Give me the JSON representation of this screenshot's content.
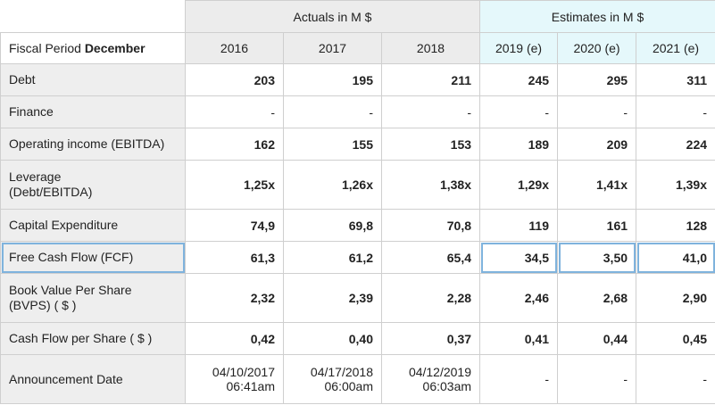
{
  "header": {
    "actuals_label": "Actuals in M $",
    "estimates_label": "Estimates in M $",
    "fiscal_period_prefix": "Fiscal Period ",
    "fiscal_period_month": "December",
    "years": [
      "2016",
      "2017",
      "2018",
      "2019 (e)",
      "2020 (e)",
      "2021 (e)"
    ]
  },
  "rows": [
    {
      "label_lines": [
        "Debt"
      ],
      "values": [
        "203",
        "195",
        "211",
        "245",
        "295",
        "311"
      ]
    },
    {
      "label_lines": [
        "Finance"
      ],
      "values": [
        "-",
        "-",
        "-",
        "-",
        "-",
        "-"
      ]
    },
    {
      "label_lines": [
        "Operating income (EBITDA)"
      ],
      "values": [
        "162",
        "155",
        "153",
        "189",
        "209",
        "224"
      ]
    },
    {
      "label_lines": [
        "Leverage",
        "(Debt/EBITDA)"
      ],
      "values": [
        "1,25x",
        "1,26x",
        "1,38x",
        "1,29x",
        "1,41x",
        "1,39x"
      ]
    },
    {
      "label_lines": [
        "Capital Expenditure"
      ],
      "values": [
        "74,9",
        "69,8",
        "70,8",
        "119",
        "161",
        "128"
      ]
    },
    {
      "label_lines": [
        "Free Cash Flow (FCF)"
      ],
      "values": [
        "61,3",
        "61,2",
        "65,4",
        "34,5",
        "3,50",
        "41,0"
      ]
    },
    {
      "label_lines": [
        "Book Value Per Share",
        "(BVPS) ( $ )"
      ],
      "values": [
        "2,32",
        "2,39",
        "2,28",
        "2,46",
        "2,68",
        "2,90"
      ]
    },
    {
      "label_lines": [
        "Cash Flow per Share ( $ )"
      ],
      "values": [
        "0,42",
        "0,40",
        "0,37",
        "0,41",
        "0,44",
        "0,45"
      ]
    },
    {
      "label_lines": [
        "Announcement Date"
      ],
      "dates": [
        [
          "04/10/2017",
          "06:41am"
        ],
        [
          "04/17/2018",
          "06:00am"
        ],
        [
          "04/12/2019",
          "06:03am"
        ]
      ],
      "values": [
        "-",
        "-",
        "-"
      ]
    }
  ]
}
